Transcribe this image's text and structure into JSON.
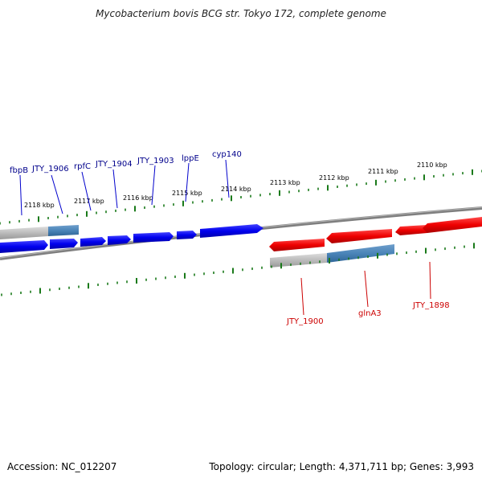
{
  "title": "Mycobacterium bovis BCG str. Tokyo 172, complete genome",
  "footer": {
    "accession": "Accession: NC_012207",
    "stats": "Topology: circular; Length: 4,371,711 bp; Genes: 3,993"
  },
  "scale_labels": [
    "2118 kbp",
    "2117 kbp",
    "2116 kbp",
    "2115 kbp",
    "2114 kbp",
    "2113 kbp",
    "2112 kbp",
    "2111 kbp",
    "2110 kbp"
  ],
  "forward_gene_labels": [
    "fbpB",
    "JTY_1906",
    "rpfC",
    "JTY_1904",
    "JTY_1903",
    "lppE",
    "cyp140"
  ],
  "reverse_gene_labels": [
    "JTY_1900",
    "glnA3",
    "JTY_1898"
  ],
  "colors": {
    "forward_gene": "#0000ee",
    "reverse_gene": "#ee0000",
    "forward_label": "#00008b",
    "reverse_label": "#cc0000",
    "tick": "#1a7a1a",
    "backbone": "#808080",
    "pseudo_gray": "#bbbbbb",
    "pseudo_blue": "#4a84b8"
  }
}
